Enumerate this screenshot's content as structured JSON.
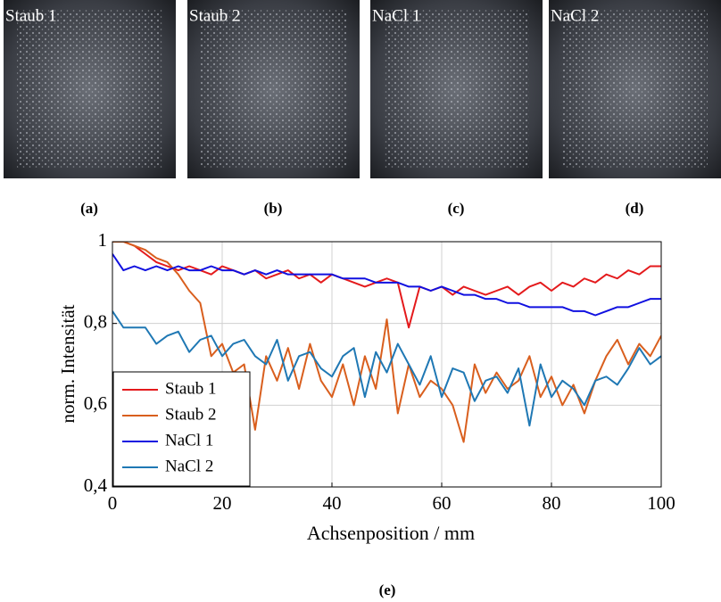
{
  "images": [
    {
      "label": "Staub 1",
      "caption": "(a)"
    },
    {
      "label": "Staub 2",
      "caption": "(b)"
    },
    {
      "label": "NaCl 1",
      "caption": "(c)"
    },
    {
      "label": "NaCl 2",
      "caption": "(d)"
    }
  ],
  "chart_data": {
    "type": "line",
    "xlabel": "Achsenposition / mm",
    "ylabel": "norm. Intensität",
    "x": [
      0,
      2,
      4,
      6,
      8,
      10,
      12,
      14,
      16,
      18,
      20,
      22,
      24,
      26,
      28,
      30,
      32,
      34,
      36,
      38,
      40,
      42,
      44,
      46,
      48,
      50,
      52,
      54,
      56,
      58,
      60,
      62,
      64,
      66,
      68,
      70,
      72,
      74,
      76,
      78,
      80,
      82,
      84,
      86,
      88,
      90,
      92,
      94,
      96,
      98,
      100
    ],
    "series": [
      {
        "name": "Staub 1",
        "color": "#e41a1c",
        "values": [
          1.0,
          1.0,
          0.99,
          0.97,
          0.95,
          0.94,
          0.93,
          0.94,
          0.93,
          0.92,
          0.94,
          0.93,
          0.92,
          0.93,
          0.91,
          0.92,
          0.93,
          0.91,
          0.92,
          0.9,
          0.92,
          0.91,
          0.9,
          0.89,
          0.9,
          0.91,
          0.9,
          0.79,
          0.89,
          0.88,
          0.89,
          0.87,
          0.89,
          0.88,
          0.87,
          0.88,
          0.89,
          0.87,
          0.89,
          0.9,
          0.88,
          0.9,
          0.89,
          0.91,
          0.9,
          0.92,
          0.91,
          0.93,
          0.92,
          0.94,
          0.94
        ]
      },
      {
        "name": "Staub 2",
        "color": "#d95f1e",
        "values": [
          1.0,
          1.0,
          0.99,
          0.98,
          0.96,
          0.95,
          0.92,
          0.88,
          0.85,
          0.72,
          0.75,
          0.68,
          0.7,
          0.54,
          0.72,
          0.66,
          0.74,
          0.64,
          0.75,
          0.66,
          0.62,
          0.7,
          0.6,
          0.72,
          0.64,
          0.81,
          0.58,
          0.7,
          0.62,
          0.66,
          0.64,
          0.6,
          0.51,
          0.7,
          0.63,
          0.68,
          0.64,
          0.66,
          0.72,
          0.62,
          0.67,
          0.6,
          0.65,
          0.58,
          0.66,
          0.72,
          0.76,
          0.7,
          0.75,
          0.72,
          0.77
        ]
      },
      {
        "name": "NaCl 1",
        "color": "#1010e0",
        "values": [
          0.97,
          0.93,
          0.94,
          0.93,
          0.94,
          0.93,
          0.94,
          0.93,
          0.93,
          0.94,
          0.93,
          0.93,
          0.92,
          0.93,
          0.92,
          0.93,
          0.92,
          0.92,
          0.92,
          0.92,
          0.92,
          0.91,
          0.91,
          0.91,
          0.9,
          0.9,
          0.9,
          0.89,
          0.89,
          0.88,
          0.89,
          0.88,
          0.87,
          0.87,
          0.86,
          0.86,
          0.85,
          0.85,
          0.84,
          0.84,
          0.84,
          0.84,
          0.83,
          0.83,
          0.82,
          0.83,
          0.84,
          0.84,
          0.85,
          0.86,
          0.86
        ]
      },
      {
        "name": "NaCl 2",
        "color": "#1f78b4",
        "values": [
          0.83,
          0.79,
          0.79,
          0.79,
          0.75,
          0.77,
          0.78,
          0.73,
          0.76,
          0.77,
          0.72,
          0.75,
          0.76,
          0.72,
          0.7,
          0.76,
          0.66,
          0.72,
          0.73,
          0.69,
          0.67,
          0.72,
          0.74,
          0.62,
          0.73,
          0.68,
          0.75,
          0.7,
          0.65,
          0.72,
          0.62,
          0.69,
          0.68,
          0.61,
          0.66,
          0.67,
          0.63,
          0.69,
          0.55,
          0.7,
          0.62,
          0.66,
          0.64,
          0.6,
          0.66,
          0.67,
          0.65,
          0.69,
          0.74,
          0.7,
          0.72
        ]
      }
    ],
    "xlim": [
      0,
      100
    ],
    "xticks": [
      0,
      20,
      40,
      60,
      80,
      100
    ],
    "ylim": [
      0.4,
      1
    ],
    "yticks": [
      {
        "value": 0.4,
        "label": "0,4"
      },
      {
        "value": 0.6,
        "label": "0,6"
      },
      {
        "value": 0.8,
        "label": "0,8"
      },
      1
    ],
    "grid": true,
    "legend": "lower left"
  },
  "caption": "(e)"
}
